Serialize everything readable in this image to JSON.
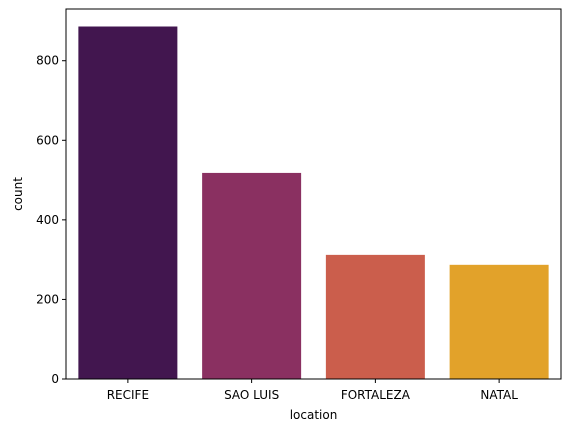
{
  "chart_data": {
    "type": "bar",
    "title": "",
    "xlabel": "location",
    "ylabel": "count",
    "categories": [
      "RECIFE",
      "SAO LUIS",
      "FORTALEZA",
      "NATAL"
    ],
    "values": [
      886,
      518,
      312,
      287
    ],
    "colors": [
      "#42164F",
      "#8A3061",
      "#CB5E4C",
      "#E2A22A"
    ],
    "ylim": [
      0,
      930
    ],
    "yticks": [
      0,
      200,
      400,
      600,
      800
    ],
    "grid": false,
    "legend": "none"
  }
}
